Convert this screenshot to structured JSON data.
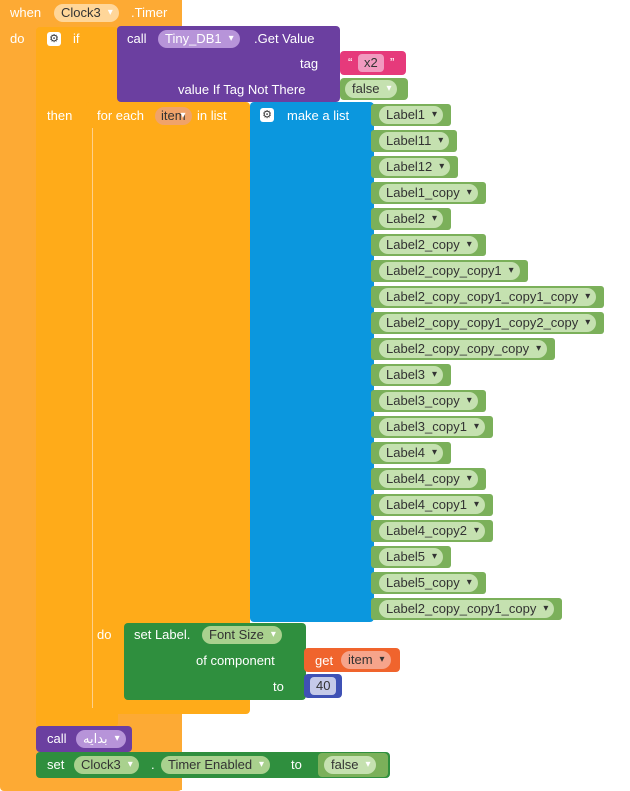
{
  "event": {
    "when": "when",
    "component": "Clock3",
    "event_name": ".Timer",
    "do": "do"
  },
  "if_block": {
    "if": "if",
    "then": "then"
  },
  "call_getvalue": {
    "call": "call",
    "component": "Tiny_DB1",
    "method": ".Get Value",
    "tag_label": "tag",
    "tag_value": "x2",
    "value_if_not_there_label": "value If Tag Not There",
    "value_if_not_there": "false"
  },
  "for_each": {
    "label": "for each",
    "var": "item",
    "in_list": "in list",
    "do": "do"
  },
  "make_list": {
    "label": "make a list",
    "items": [
      "Label1",
      "Label11",
      "Label12",
      "Label1_copy",
      "Label2",
      "Label2_copy",
      "Label2_copy_copy1",
      "Label2_copy_copy1_copy1_copy",
      "Label2_copy_copy1_copy2_copy",
      "Label2_copy_copy_copy",
      "Label3",
      "Label3_copy",
      "Label3_copy1",
      "Label4",
      "Label4_copy",
      "Label4_copy1",
      "Label4_copy2",
      "Label5",
      "Label5_copy",
      "Label2_copy_copy1_copy"
    ]
  },
  "set_label": {
    "set": "set Label.",
    "property": "Font Size",
    "of_component": "of component",
    "get": "get",
    "get_var": "item",
    "to": "to",
    "value": "40"
  },
  "call_proc": {
    "call": "call",
    "name": "بدايه"
  },
  "set_timer": {
    "set": "set",
    "component": "Clock3",
    "dot": ".",
    "property": "Timer Enabled",
    "to": "to",
    "value": "false"
  },
  "colors": {
    "event_orange": "#fdaa34",
    "control_orange": "#ffab19",
    "purple": "#6b3fa0",
    "blue": "#0b97de",
    "green": "#2f8f3e",
    "label_green": "#7bb05a",
    "text_red": "#e63a7b",
    "logic_green": "#7bb05a",
    "number_blue": "#3f51b5",
    "var_orange": "#f0642d"
  }
}
